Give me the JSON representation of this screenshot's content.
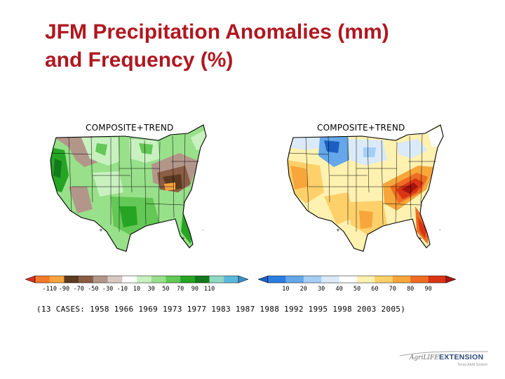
{
  "title": {
    "line1": "JFM Precipitation Anomalies (mm)",
    "line2": "and Frequency (%)"
  },
  "maps": [
    {
      "label": "COMPOSITE+TREND",
      "variable": "Precipitation anomaly (mm)"
    },
    {
      "label": "COMPOSITE+TREND",
      "variable": "Frequency (%)"
    }
  ],
  "colorbars": [
    {
      "labels": [
        "-110",
        "-90",
        "-70",
        "-50",
        "-30",
        "-10",
        "10",
        "30",
        "50",
        "70",
        "90",
        "110"
      ],
      "colors": [
        "#d5311d",
        "#f2782a",
        "#f7a43c",
        "#5b3a21",
        "#8a5e45",
        "#b3968a",
        "#d9c8c2",
        "#ffffff",
        "#c9f1c0",
        "#98e08a",
        "#63c855",
        "#26a524",
        "#137a1b",
        "#8fd8c4",
        "#5ab8dd",
        "#3c8fc6"
      ]
    },
    {
      "labels": [
        "10",
        "20",
        "30",
        "40",
        "50",
        "60",
        "70",
        "80",
        "90"
      ],
      "colors": [
        "#1c5fc2",
        "#2c7de0",
        "#64a7ea",
        "#a5cef4",
        "#dbeaf9",
        "#ffffff",
        "#fff1b0",
        "#fdd06a",
        "#f7a63b",
        "#ee6d23",
        "#d93514",
        "#a5150e"
      ]
    }
  ],
  "cases": "(13 CASES:  1958 1966 1969 1973 1977 1983 1987 1988 1992 1995 1998 2003 2005)",
  "logo": {
    "agri": "AgriLIFE",
    "extension": "EXTENSION",
    "tagline": "Texas A&M System"
  }
}
